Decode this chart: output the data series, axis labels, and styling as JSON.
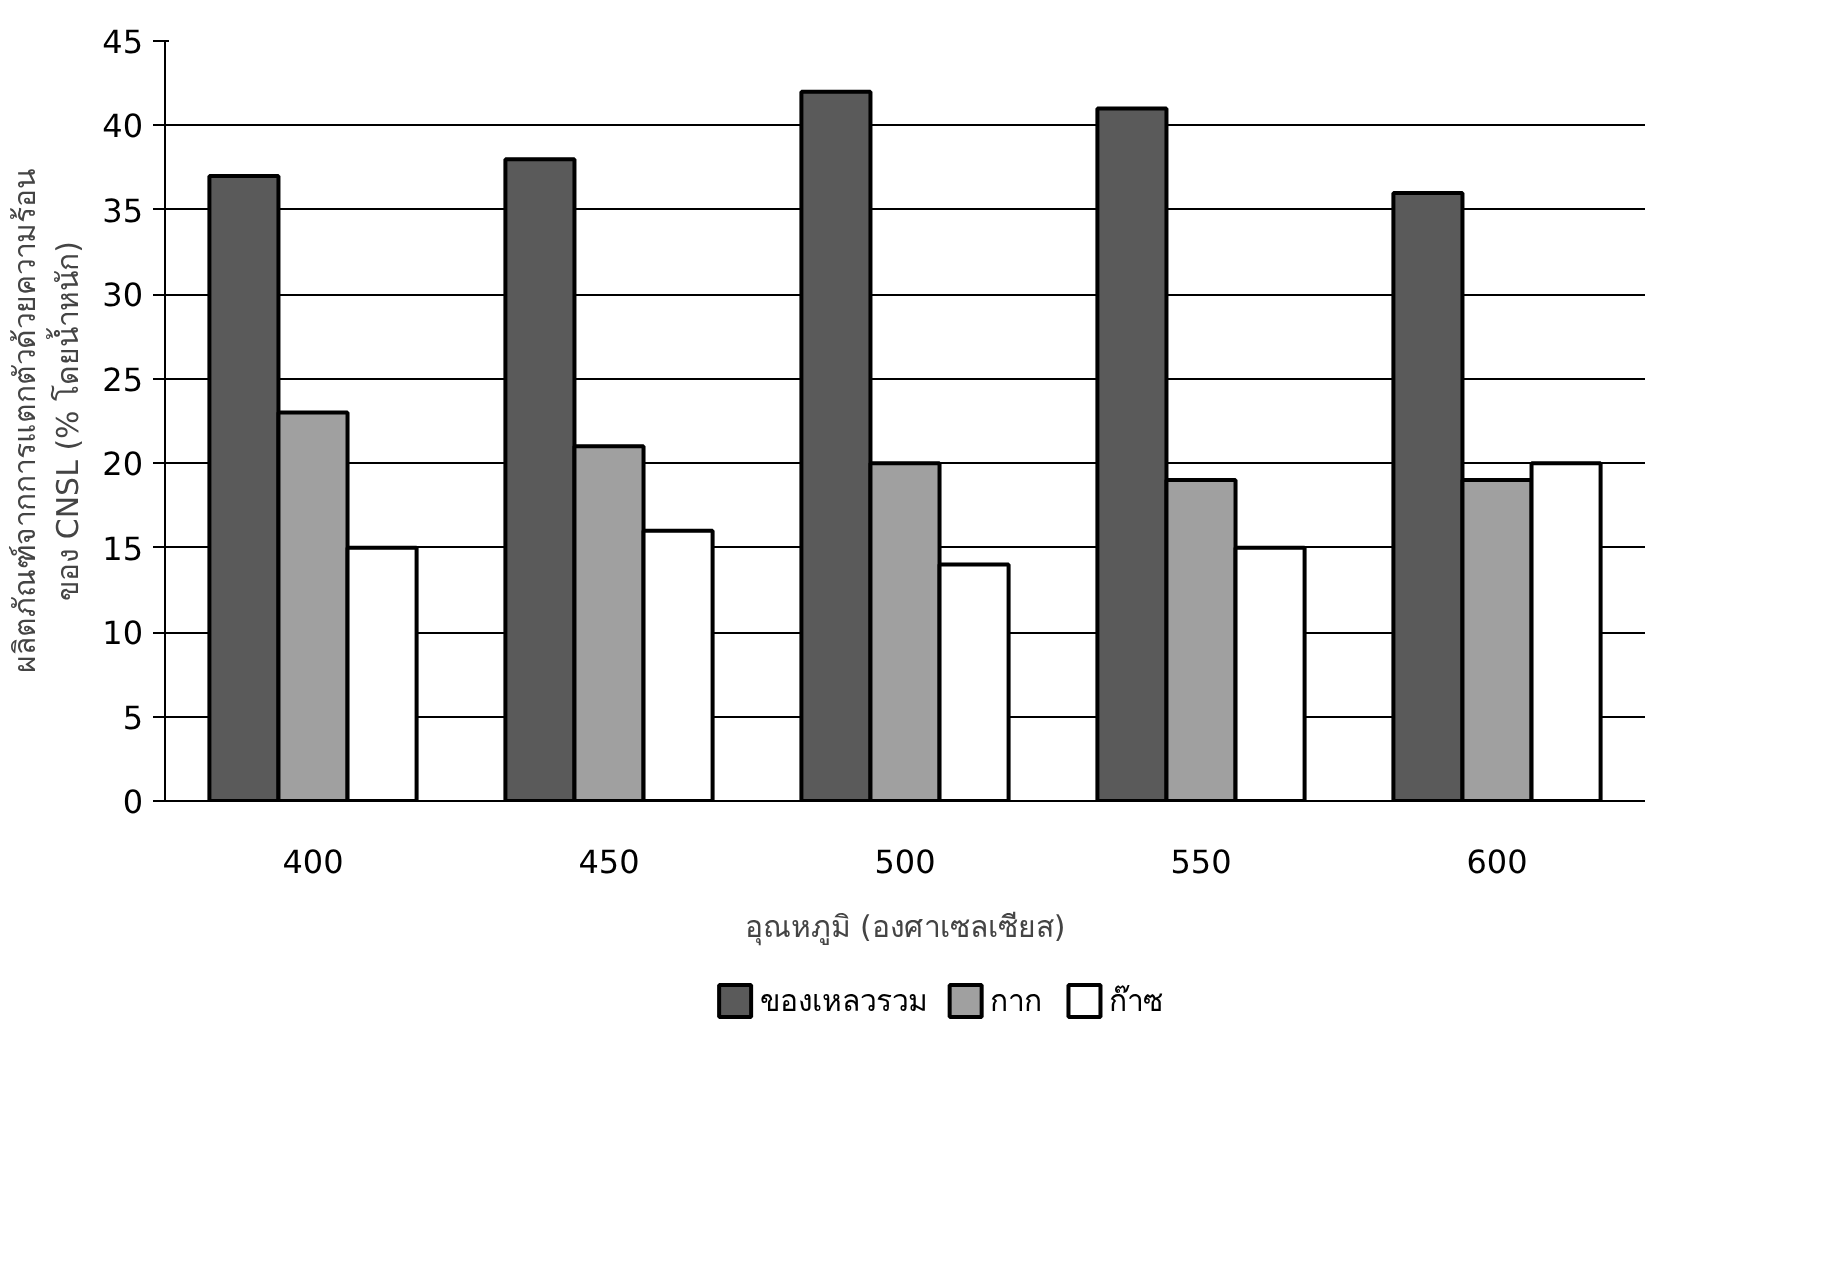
{
  "chart_data": {
    "type": "bar",
    "categories": [
      "400",
      "450",
      "500",
      "550",
      "600"
    ],
    "xlabel": "อุณหภูมิ (องศาเซลเซียส)",
    "ylabel": "ผลิตภัณฑ์จากการแตกตัวด้วยความร้อน\nของ CNSL (% โดยน้ำหนัก)",
    "ylim": [
      0,
      45
    ],
    "yticks": [
      0,
      5,
      10,
      15,
      20,
      25,
      30,
      35,
      40,
      45
    ],
    "grid": "y",
    "legend": "bottom",
    "series": [
      {
        "name": "ของเหลวรวม",
        "color": "#5a5a5a",
        "values": [
          37,
          38,
          42,
          41,
          36
        ]
      },
      {
        "name": "กาก",
        "color": "#a0a0a0",
        "values": [
          23,
          21,
          20,
          19,
          19
        ]
      },
      {
        "name": "ก๊าซ",
        "color": "#ffffff",
        "values": [
          15,
          16,
          14,
          15,
          20
        ]
      }
    ]
  }
}
